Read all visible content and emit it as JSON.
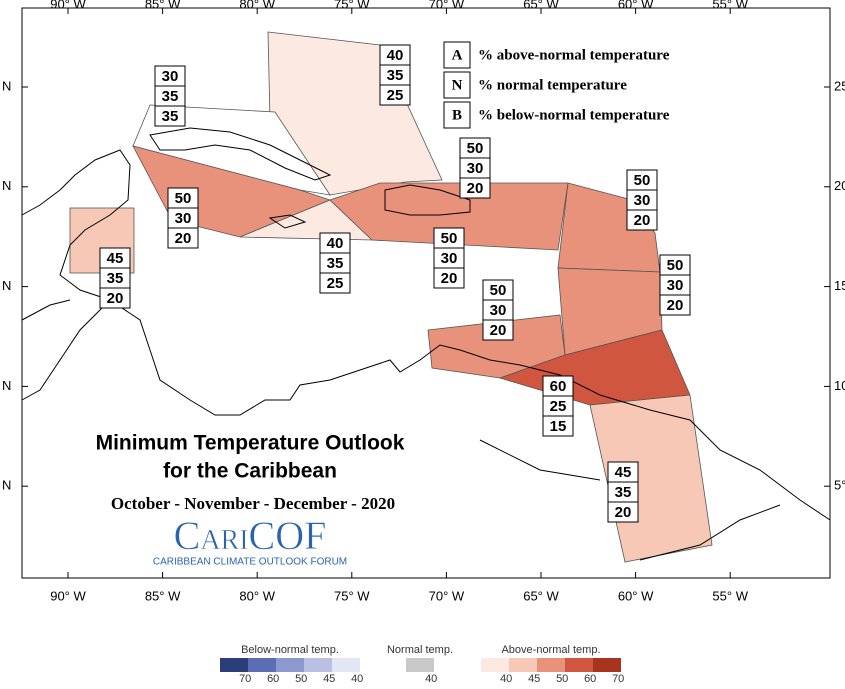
{
  "title": {
    "line1": "Minimum Temperature Outlook",
    "line2": "for the Caribbean",
    "period": "October - November - December - 2020"
  },
  "logo": {
    "name": "CariCOF",
    "subtitle": "CARIBBEAN CLIMATE OUTLOOK FORUM"
  },
  "key": [
    {
      "letter": "A",
      "label": "% above-normal temperature"
    },
    {
      "letter": "N",
      "label": "% normal temperature"
    },
    {
      "letter": "B",
      "label": "% below-normal temperature"
    }
  ],
  "longitude_labels": [
    "90° W",
    "85° W",
    "80° W",
    "75° W",
    "70° W",
    "65° W",
    "60° W",
    "55° W"
  ],
  "latitude_labels_left": [
    "N",
    "N",
    "N",
    "N",
    "N"
  ],
  "latitude_labels_right": [
    "25",
    "20",
    "15",
    "10",
    "5°"
  ],
  "regions": [
    {
      "values": [
        30,
        35,
        35
      ]
    },
    {
      "values": [
        40,
        35,
        25
      ]
    },
    {
      "values": [
        50,
        30,
        20
      ]
    },
    {
      "values": [
        50,
        30,
        20
      ]
    },
    {
      "values": [
        40,
        35,
        25
      ]
    },
    {
      "values": [
        50,
        30,
        20
      ]
    },
    {
      "values": [
        50,
        30,
        20
      ]
    },
    {
      "values": [
        50,
        30,
        20
      ]
    },
    {
      "values": [
        45,
        35,
        20
      ]
    },
    {
      "values": [
        50,
        30,
        20
      ]
    },
    {
      "values": [
        60,
        25,
        15
      ]
    },
    {
      "values": [
        45,
        35,
        20
      ]
    }
  ],
  "colorbar": {
    "below": {
      "label": "Below-normal temp.",
      "ticks": [
        70,
        60,
        50,
        45,
        40
      ]
    },
    "normal": {
      "label": "Normal temp.",
      "ticks": [
        40
      ]
    },
    "above": {
      "label": "Above-normal temp.",
      "ticks": [
        40,
        45,
        50,
        60,
        70
      ]
    }
  }
}
